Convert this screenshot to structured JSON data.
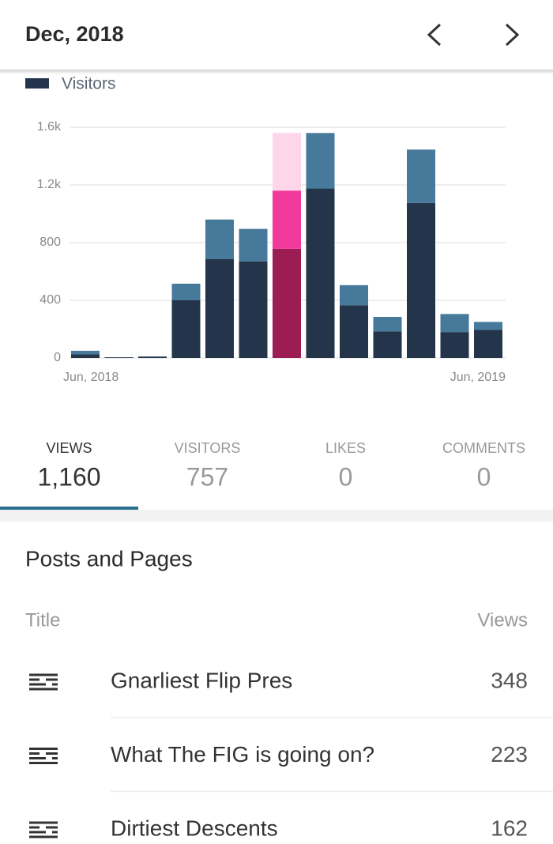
{
  "header": {
    "title": "Dec, 2018"
  },
  "chart_data": {
    "type": "stacked-bar",
    "categories": [
      "Jun, 2018",
      null,
      null,
      null,
      null,
      null,
      null,
      null,
      null,
      null,
      null,
      null,
      "Jun, 2019"
    ],
    "series": [
      {
        "name": "Visitors",
        "color": "#23344b",
        "highlight_color": "#9b1d53",
        "values": [
          25,
          5,
          10,
          400,
          685,
          670,
          757,
          1175,
          365,
          185,
          1075,
          180,
          195
        ]
      },
      {
        "color": "#46799a",
        "highlight_color": "#f0399a",
        "values": [
          25,
          0,
          0,
          115,
          275,
          225,
          403,
          385,
          140,
          100,
          370,
          125,
          55
        ]
      }
    ],
    "highlight": 6,
    "highlight_background": "#fdd6ea",
    "ylim": [
      0,
      1600
    ],
    "yticks": [
      0,
      400,
      800,
      {
        "value": 1200,
        "label": "1.2k"
      },
      {
        "value": 1600,
        "label": "1.6k"
      }
    ],
    "grid": true
  },
  "tabs": {
    "selected": 0,
    "items": [
      {
        "label": "VIEWS",
        "value": "1,160"
      },
      {
        "label": "VISITORS",
        "value": "757"
      },
      {
        "label": "LIKES",
        "value": "0"
      },
      {
        "label": "COMMENTS",
        "value": "0"
      }
    ]
  },
  "posts": {
    "title": "Posts and Pages",
    "columns": [
      "Title",
      "Views"
    ],
    "rows": [
      {
        "title": "Gnarliest Flip Pres",
        "views": 348
      },
      {
        "title": "What The FIG is going on?",
        "views": 223
      },
      {
        "title": "Dirtiest Descents",
        "views": 162
      }
    ]
  }
}
